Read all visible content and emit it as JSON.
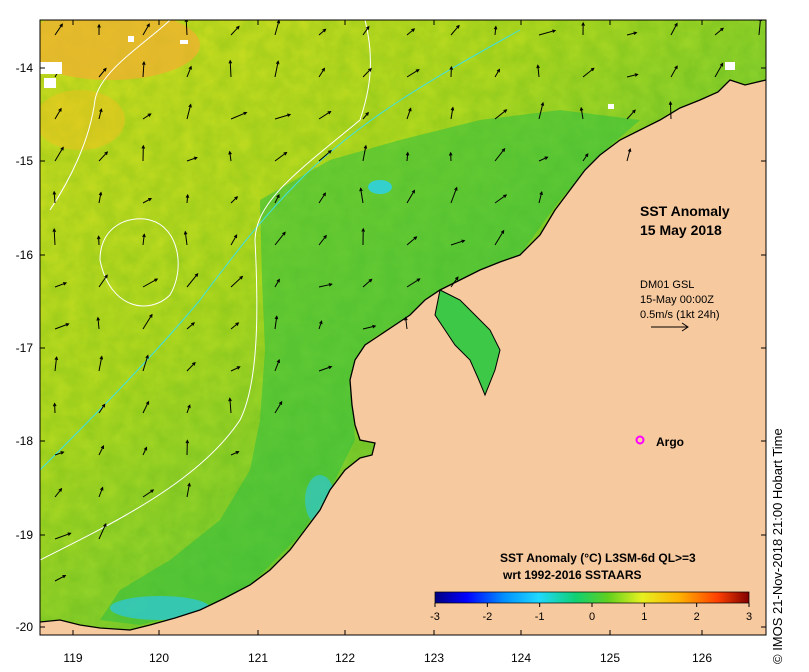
{
  "map": {
    "title_line1": "SST Anomaly",
    "title_line2": "15 May 2018",
    "current_source": "DM01 GSL",
    "current_time": "15-May 00:00Z",
    "current_scale": "0.5m/s (1kt 24h)",
    "argo_label": "Argo",
    "legend_title": "SST Anomaly (°C) L3SM-6d QL>=3",
    "legend_subtitle": "wrt 1992-2016 SSTAARS",
    "credit": "© IMOS 21-Nov-2018 21:00 Hobart Time",
    "x_ticks": [
      "119",
      "120",
      "121",
      "122",
      "123",
      "124",
      "125",
      "126"
    ],
    "y_ticks": [
      "-14",
      "-15",
      "-16",
      "-17",
      "-18",
      "-19",
      "-20"
    ],
    "colorbar_ticks": [
      "-3",
      "-2",
      "-1",
      "0",
      "1",
      "2",
      "3"
    ],
    "colors": {
      "land": "#f7c99e",
      "argo": "#ff00ff",
      "colorbar": [
        "#00007f",
        "#0000ff",
        "#0090ff",
        "#20d8ff",
        "#10d070",
        "#30c030",
        "#a0e010",
        "#f0f020",
        "#ffb000",
        "#ff5000",
        "#c00000",
        "#800000"
      ]
    }
  }
}
